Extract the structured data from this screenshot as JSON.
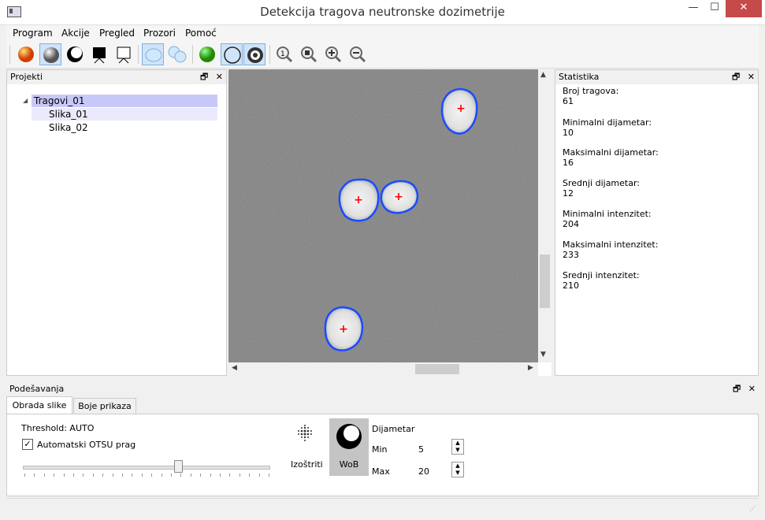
{
  "window": {
    "title": "Detekcija tragova neutronske dozimetrije",
    "minimize_glyph": "—",
    "maximize_glyph": "☐",
    "close_glyph": "✕"
  },
  "menu": [
    "Program",
    "Akcije",
    "Pregled",
    "Prozori",
    "Pomoć"
  ],
  "panels": {
    "projekti": {
      "title": "Projekti",
      "tree": {
        "root": "Tragovi_01",
        "children": [
          "Slika_01",
          "Slika_02"
        ]
      }
    },
    "statistika": {
      "title": "Statistika",
      "items": [
        {
          "label": "Broj tragova:",
          "value": "61"
        },
        {
          "label": "Minimalni dijametar:",
          "value": "10"
        },
        {
          "label": "Maksimalni dijametar:",
          "value": "16"
        },
        {
          "label": "Srednji dijametar:",
          "value": "12"
        },
        {
          "label": "Minimalni intenzitet:",
          "value": "204"
        },
        {
          "label": "Maksimalni intenzitet:",
          "value": "233"
        },
        {
          "label": "Srednji intenzitet:",
          "value": "210"
        }
      ]
    },
    "podesavanja": {
      "title": "Podešavanja",
      "tabs": [
        "Obrada slike",
        "Boje prikaza"
      ],
      "threshold_label": "Threshold: AUTO",
      "otsu_label": "Automatski OTSU prag",
      "otsu_checked": true,
      "threshold_slider_fraction": 0.63,
      "izostriti_label": "Izoštriti",
      "wob_label": "WoB",
      "diameter_label": "Dijametar",
      "min_label": "Min",
      "min_value": "5",
      "max_label": "Max",
      "max_value": "20"
    }
  },
  "panel_controls": {
    "float": "🗗",
    "close": "✕"
  },
  "colors": {
    "selection": "#c8c8f8",
    "track_outline": "#1a4cff",
    "track_center": "#ff0000",
    "close_button": "#c74a4a"
  }
}
